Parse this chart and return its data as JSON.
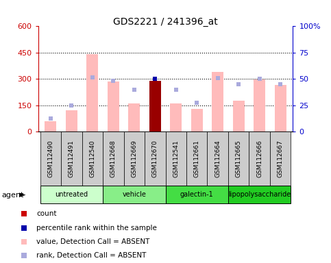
{
  "title": "GDS2221 / 241396_at",
  "samples": [
    "GSM112490",
    "GSM112491",
    "GSM112540",
    "GSM112668",
    "GSM112669",
    "GSM112670",
    "GSM112541",
    "GSM112661",
    "GSM112664",
    "GSM112665",
    "GSM112666",
    "GSM112667"
  ],
  "groups": [
    {
      "name": "untreated",
      "indices": [
        0,
        1,
        2
      ],
      "color": "#ccffcc"
    },
    {
      "name": "vehicle",
      "indices": [
        3,
        4,
        5
      ],
      "color": "#88ee88"
    },
    {
      "name": "galectin-1",
      "indices": [
        6,
        7,
        8
      ],
      "color": "#44dd44"
    },
    {
      "name": "lipopolysaccharide",
      "indices": [
        9,
        10,
        11
      ],
      "color": "#22cc22"
    }
  ],
  "pink_bar_values": [
    60,
    120,
    440,
    285,
    160,
    null,
    160,
    130,
    340,
    175,
    295,
    265
  ],
  "rank_dots_y_left": [
    75,
    150,
    310,
    290,
    240,
    null,
    240,
    165,
    305,
    270,
    300,
    270
  ],
  "count_bar_values": [
    null,
    null,
    null,
    null,
    null,
    290,
    null,
    null,
    null,
    null,
    null,
    null
  ],
  "percentile_dot_y_left": [
    null,
    null,
    null,
    null,
    null,
    300,
    null,
    null,
    null,
    null,
    null,
    null
  ],
  "ylim_left": [
    0,
    600
  ],
  "ylim_right": [
    0,
    100
  ],
  "yticks_left": [
    0,
    150,
    300,
    450,
    600
  ],
  "yticks_right": [
    0,
    25,
    50,
    75,
    100
  ],
  "ytick_labels_left": [
    "0",
    "150",
    "300",
    "450",
    "600"
  ],
  "ytick_labels_right": [
    "0",
    "25",
    "50",
    "75",
    "100%"
  ],
  "left_axis_color": "#cc0000",
  "right_axis_color": "#0000cc",
  "bar_color_pink": "#ffbbbb",
  "bar_color_red": "#990000",
  "dot_color_rank": "#aaaadd",
  "dot_color_percentile": "#0000aa",
  "plot_bg": "#ffffff",
  "sample_area_bg": "#cccccc",
  "agent_label": "agent",
  "legend_items": [
    {
      "color": "#cc0000",
      "label": "count"
    },
    {
      "color": "#0000aa",
      "label": "percentile rank within the sample"
    },
    {
      "color": "#ffbbbb",
      "label": "value, Detection Call = ABSENT"
    },
    {
      "color": "#aaaadd",
      "label": "rank, Detection Call = ABSENT"
    }
  ]
}
